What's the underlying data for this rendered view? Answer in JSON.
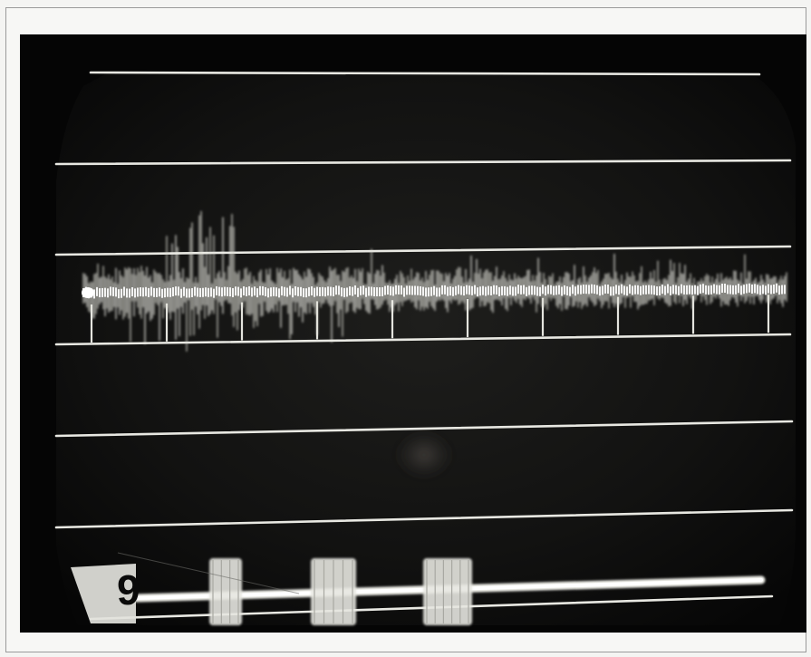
{
  "photo": {
    "plate_number": "9"
  },
  "colors": {
    "paper": "#f4f4f2",
    "screen_dark": "#0d0d0d",
    "trace": "#ecece6",
    "halo": "#cfcfc8"
  }
}
